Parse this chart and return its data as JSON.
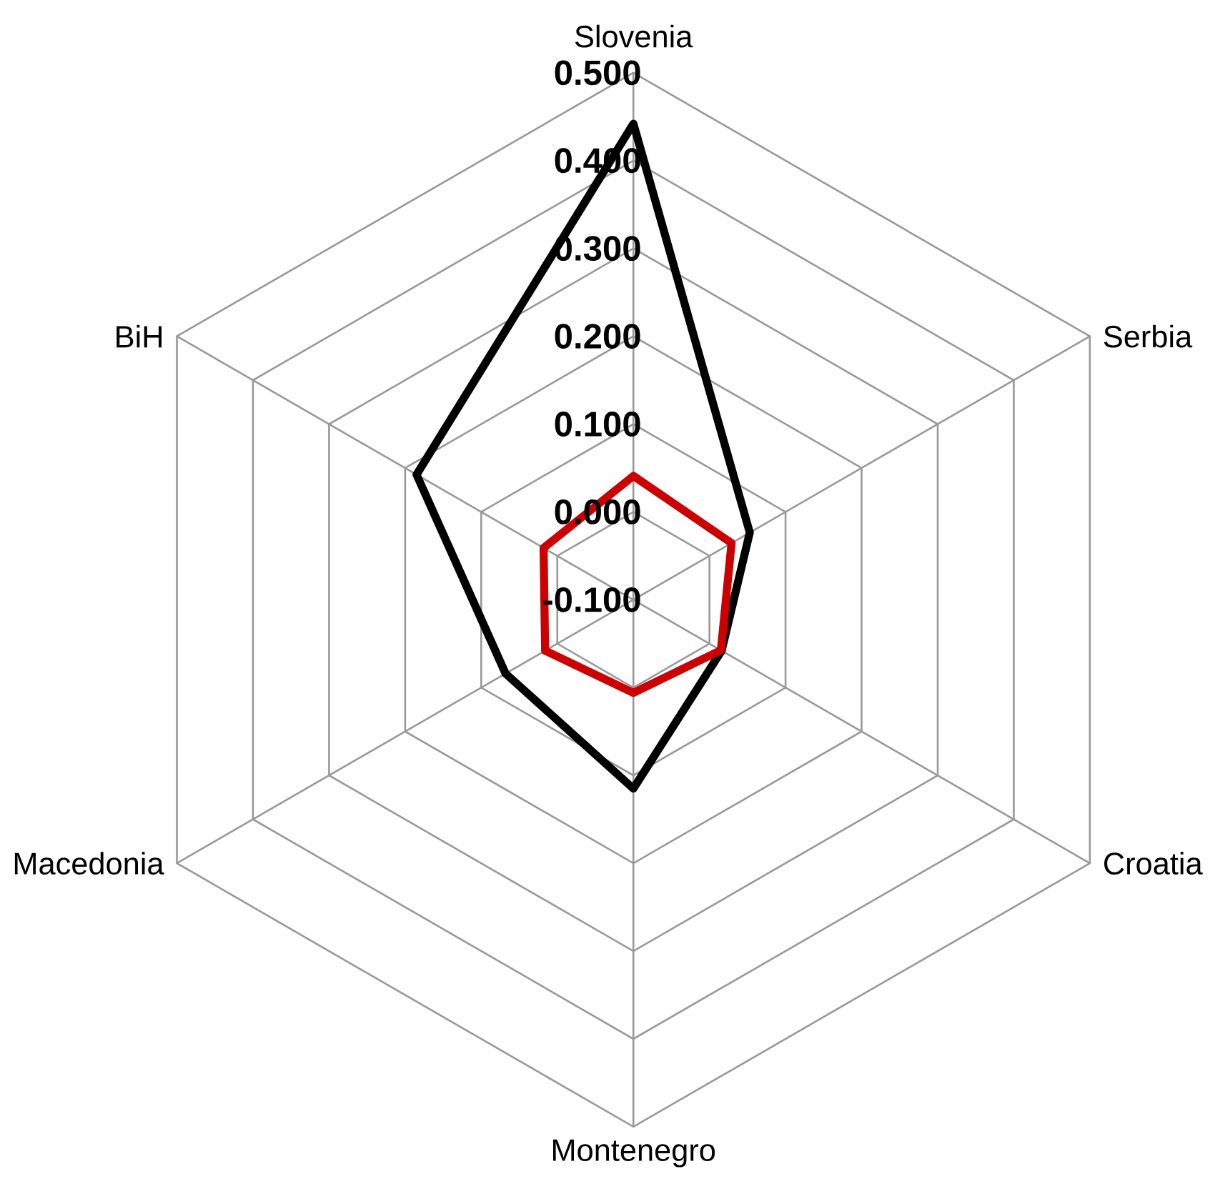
{
  "chart_data": {
    "type": "radar",
    "categories": [
      "Slovenia",
      "Serbia",
      "Croatia",
      "Montenegro",
      "Macedonia",
      "BiH"
    ],
    "series": [
      {
        "color": "#000000",
        "values": [
          0.442,
          0.053,
          0.016,
          0.115,
          0.068,
          0.185
        ]
      },
      {
        "color": "#cc0000",
        "values": [
          0.041,
          0.029,
          0.015,
          0.006,
          0.016,
          0.018
        ]
      }
    ],
    "ylim": [
      -0.1,
      0.5
    ],
    "yticks": [
      {
        "value": -0.1,
        "label": "-0.100"
      },
      {
        "value": 0.0,
        "label": "0.000"
      },
      {
        "value": 0.1,
        "label": "0.100"
      },
      {
        "value": 0.2,
        "label": "0.200"
      },
      {
        "value": 0.3,
        "label": "0.300"
      },
      {
        "value": 0.4,
        "label": "0.400"
      },
      {
        "value": 0.5,
        "label": "0.500"
      }
    ],
    "grid": true
  }
}
